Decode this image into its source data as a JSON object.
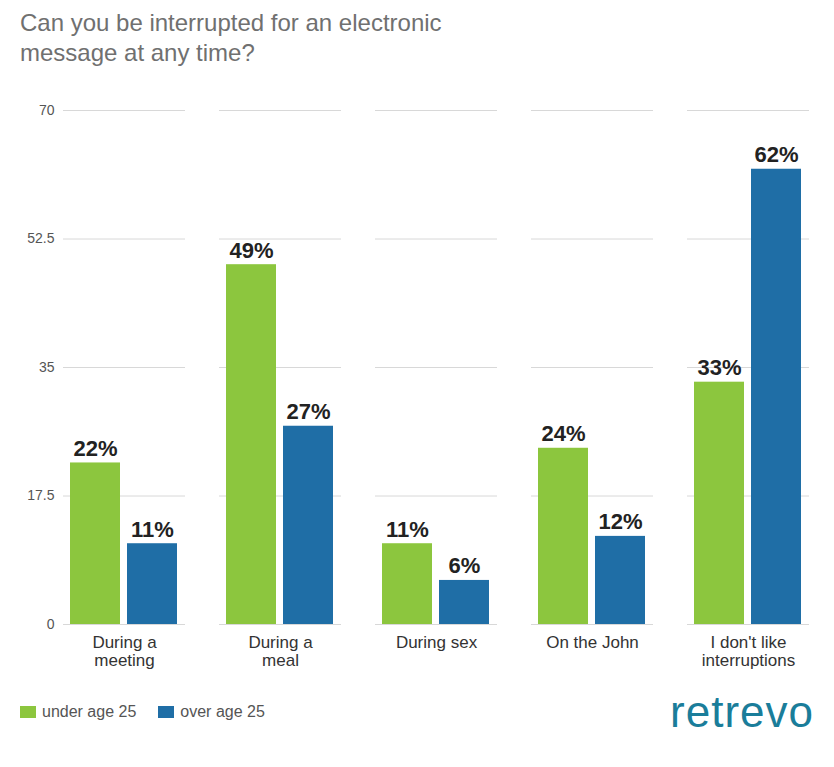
{
  "chart_data": {
    "type": "bar",
    "title": "Can you be interrupted for an electronic message at any time?",
    "categories": [
      "During a meeting",
      "During a meal",
      "During sex",
      "On the John",
      "I don't like interruptions"
    ],
    "series": [
      {
        "name": "under age 25",
        "color": "#8cc63e",
        "values": [
          22,
          49,
          11,
          24,
          33
        ],
        "value_labels": [
          "22%",
          "49%",
          "11%",
          "24%",
          "33%"
        ]
      },
      {
        "name": "over age 25",
        "color": "#1f6ea6",
        "values": [
          11,
          27,
          6,
          12,
          62
        ],
        "value_labels": [
          "11%",
          "27%",
          "6%",
          "12%",
          "62%"
        ]
      }
    ],
    "ylim": [
      0,
      70
    ],
    "yticks": [
      0,
      17.5,
      35,
      52.5,
      70
    ],
    "grid": true,
    "data_labels": true,
    "legend": "bottom-left",
    "source": "retrevo"
  }
}
